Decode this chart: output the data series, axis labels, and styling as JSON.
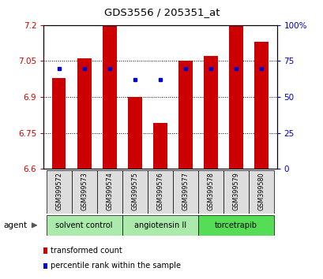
{
  "title": "GDS3556 / 205351_at",
  "samples": [
    "GSM399572",
    "GSM399573",
    "GSM399574",
    "GSM399575",
    "GSM399576",
    "GSM399577",
    "GSM399578",
    "GSM399579",
    "GSM399580"
  ],
  "bar_values": [
    6.98,
    7.06,
    7.2,
    6.9,
    6.79,
    7.05,
    7.07,
    7.2,
    7.13
  ],
  "percentile_values": [
    70,
    70,
    70,
    62,
    62,
    70,
    70,
    70,
    70
  ],
  "ymin": 6.6,
  "ymax": 7.2,
  "yticks": [
    6.6,
    6.75,
    6.9,
    7.05,
    7.2
  ],
  "y2ticks": [
    0,
    25,
    50,
    75,
    100
  ],
  "y2tick_labels": [
    "0",
    "25",
    "50",
    "75",
    "100%"
  ],
  "groups": [
    {
      "label": "solvent control",
      "start": 0,
      "end": 3,
      "color": "#aaeaaa"
    },
    {
      "label": "angiotensin II",
      "start": 3,
      "end": 6,
      "color": "#aaeaaa"
    },
    {
      "label": "torcetrapib",
      "start": 6,
      "end": 9,
      "color": "#55dd55"
    }
  ],
  "bar_color": "#CC0000",
  "dot_color": "#0000CC",
  "ylabel_left_color": "#CC0000",
  "ylabel_right_color": "#0000BB",
  "legend_items": [
    {
      "label": "transformed count",
      "color": "#CC0000"
    },
    {
      "label": "percentile rank within the sample",
      "color": "#0000CC"
    }
  ],
  "agent_label": "agent"
}
